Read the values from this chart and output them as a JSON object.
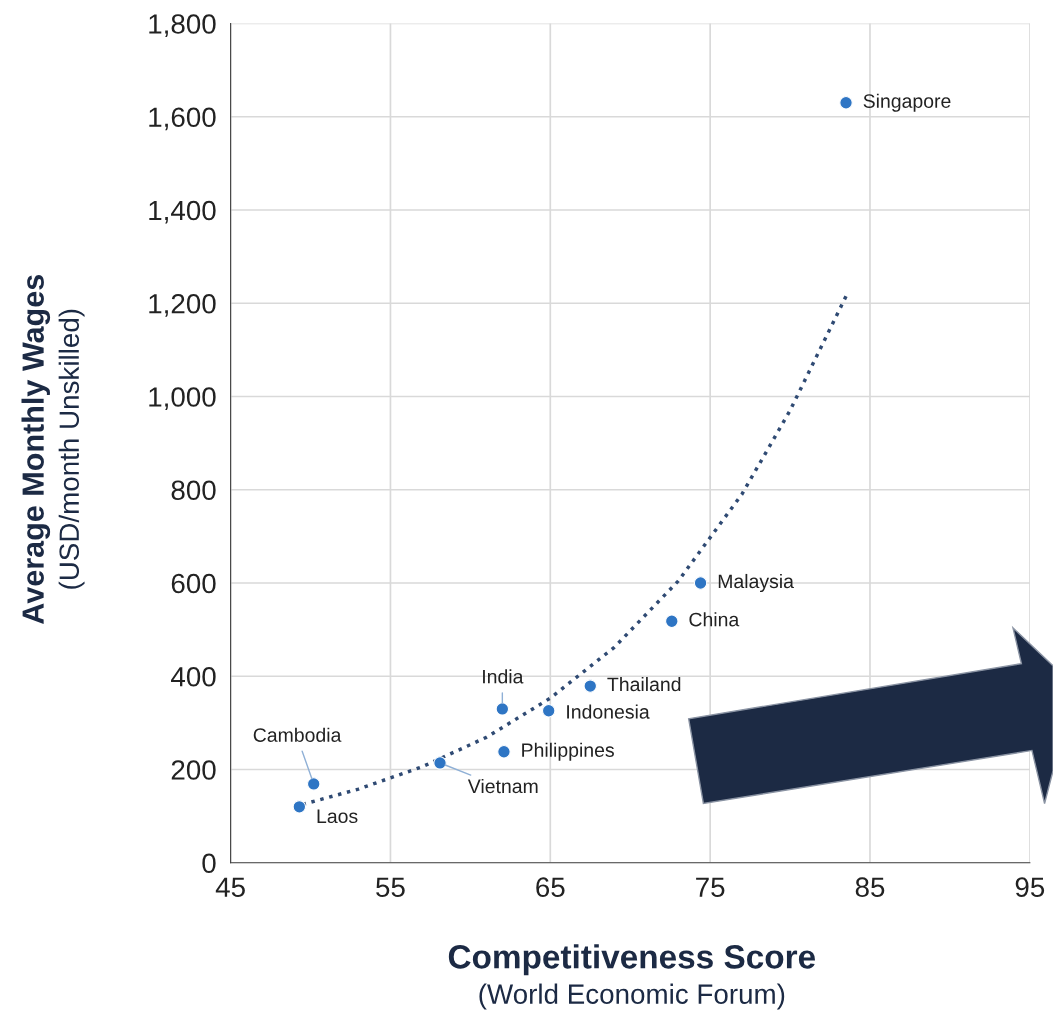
{
  "chart_data": {
    "type": "scatter",
    "xlabel": "Competitiveness Score\n(World Economic Forum)",
    "ylabel": "Average Monthly Wages\n(USD/month Unskilled)",
    "xlim": [
      45,
      95
    ],
    "xticks": [
      45,
      55,
      65,
      75,
      85,
      95
    ],
    "ylim": [
      0,
      1800
    ],
    "yticks": [
      {
        "value": 0,
        "label": "0"
      },
      {
        "value": 200,
        "label": "200"
      },
      {
        "value": 400,
        "label": "400"
      },
      {
        "value": 600,
        "label": "600"
      },
      {
        "value": 800,
        "label": "800"
      },
      {
        "value": 1000,
        "label": "1,000"
      },
      {
        "value": 1200,
        "label": "1,200"
      },
      {
        "value": 1400,
        "label": "1,400"
      },
      {
        "value": 1600,
        "label": "1,600"
      },
      {
        "value": 1800,
        "label": "1,800"
      }
    ],
    "grid": true,
    "marker": "circle",
    "series": [
      {
        "color": "#2e75c4",
        "x": [
          83.5,
          74.4,
          72.6,
          67.5,
          64.9,
          62.0,
          62.1,
          58.1,
          50.2,
          49.3
        ],
        "values": [
          1630,
          600,
          518,
          379,
          326,
          330,
          238,
          214,
          169,
          120
        ]
      },
      {
        "type": "line",
        "color": "#2f4a73",
        "line_style": "dotted",
        "marker": "none",
        "x": [
          49.5,
          53,
          57,
          61,
          65,
          69,
          73,
          77,
          80,
          83.5
        ],
        "values": [
          125,
          158,
          206,
          269,
          353,
          462,
          604,
          791,
          970,
          1215
        ]
      }
    ],
    "annotations": [
      {
        "text": "Singapore",
        "x": 83.5,
        "y": 1630
      },
      {
        "text": "Malaysia",
        "x": 74.4,
        "y": 600
      },
      {
        "text": "China",
        "x": 72.6,
        "y": 518
      },
      {
        "text": "Thailand",
        "x": 67.5,
        "y": 379
      },
      {
        "text": "Indonesia",
        "x": 64.9,
        "y": 326
      },
      {
        "text": "India",
        "x": 62.0,
        "y": 330
      },
      {
        "text": "Philippines",
        "x": 62.1,
        "y": 238
      },
      {
        "text": "Vietnam",
        "x": 58.1,
        "y": 214
      },
      {
        "text": "Cambodia",
        "x": 50.2,
        "y": 169
      },
      {
        "text": "Laos",
        "x": 49.3,
        "y": 120
      }
    ]
  }
}
